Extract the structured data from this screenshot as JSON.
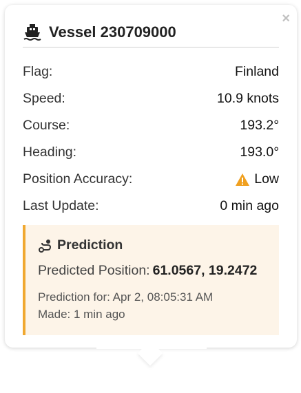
{
  "popup": {
    "close_symbol": "×",
    "title_icon": "ship-icon",
    "title": "Vessel 230709000"
  },
  "details": [
    {
      "label": "Flag:",
      "value": "Finland"
    },
    {
      "label": "Speed:",
      "value": "10.9 knots"
    },
    {
      "label": "Course:",
      "value": "193.2°"
    },
    {
      "label": "Heading:",
      "value": "193.0°"
    },
    {
      "label": "Position Accuracy:",
      "value": "Low",
      "icon": "warning-icon",
      "icon_color": "#f0a020"
    },
    {
      "label": "Last Update:",
      "value": "0 min ago"
    }
  ],
  "prediction": {
    "icon": "route-icon",
    "title": "Prediction",
    "position_label": "Predicted Position:",
    "position_value": "61.0567, 19.2472",
    "for_text": "Prediction for: Apr 2, 08:05:31 AM",
    "made_text": "Made: 1 min ago",
    "accent_color": "#f0a830",
    "background_color": "#fdf4e8"
  }
}
